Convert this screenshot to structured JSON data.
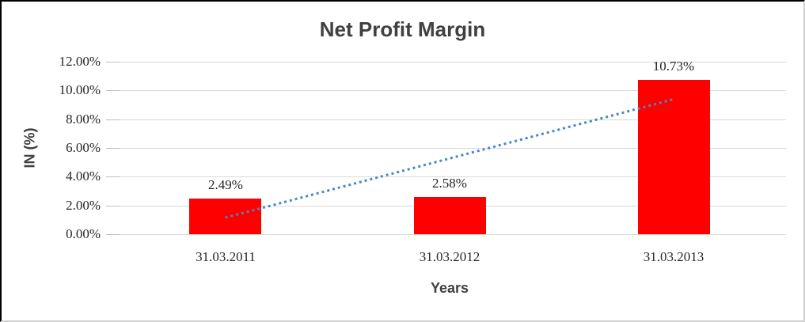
{
  "chart_data": {
    "type": "bar",
    "title": "Net Profit Margin",
    "categories": [
      "31.03.2011",
      "31.03.2012",
      "31.03.2013"
    ],
    "values": [
      2.49,
      2.58,
      10.73
    ],
    "data_labels": [
      "2.49%",
      "2.58%",
      "10.73%"
    ],
    "xlabel": "Years",
    "ylabel": "IN (%)",
    "ylim": [
      0,
      12
    ],
    "ytick_step": 2,
    "ytick_labels": [
      "0.00%",
      "2.00%",
      "4.00%",
      "6.00%",
      "8.00%",
      "10.00%",
      "12.00%"
    ],
    "grid": true,
    "legend": "none",
    "bar_color": "#ff0000",
    "gridline_color": "#d9d9d9",
    "title_color": "#404040",
    "label_color": "#262626",
    "trendline": {
      "type": "linear",
      "style": "dotted",
      "color": "#4a86c8",
      "start_value": 1.15,
      "end_value": 9.39
    }
  }
}
